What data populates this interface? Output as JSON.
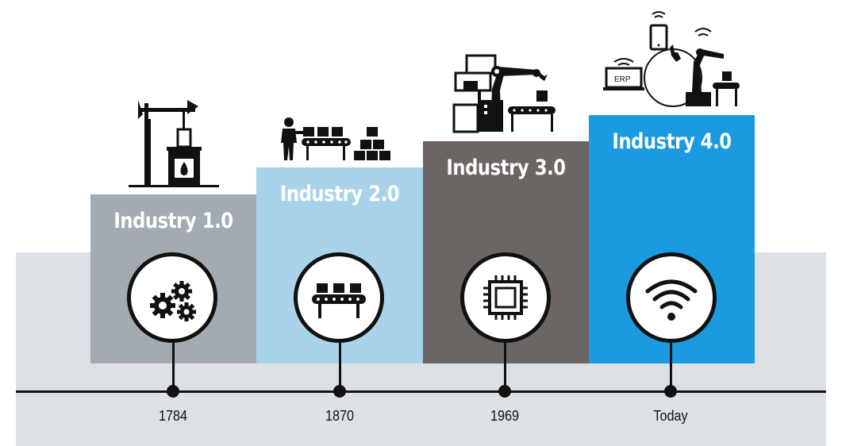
{
  "colors": {
    "band": "#dde1e5",
    "stage1": "#a2aab2",
    "stage2": "#a9d3ea",
    "stage3": "#6b6563",
    "stage4": "#1b9ae0",
    "line": "#111111"
  },
  "stages": [
    {
      "title": "Industry 1.0",
      "year": "1784",
      "circle_icon": "gears-icon",
      "top_icon": "steam-engine-icon"
    },
    {
      "title": "Industry 2.0",
      "year": "1870",
      "circle_icon": "conveyor-belt-icon",
      "top_icon": "assembly-line-worker-icon"
    },
    {
      "title": "Industry 3.0",
      "year": "1969",
      "circle_icon": "microchip-icon",
      "top_icon": "robot-arm-computer-icon"
    },
    {
      "title": "Industry 4.0",
      "year": "Today",
      "circle_icon": "wifi-icon",
      "top_icon": "connected-factory-icon",
      "erp_label": "ERP"
    }
  ]
}
